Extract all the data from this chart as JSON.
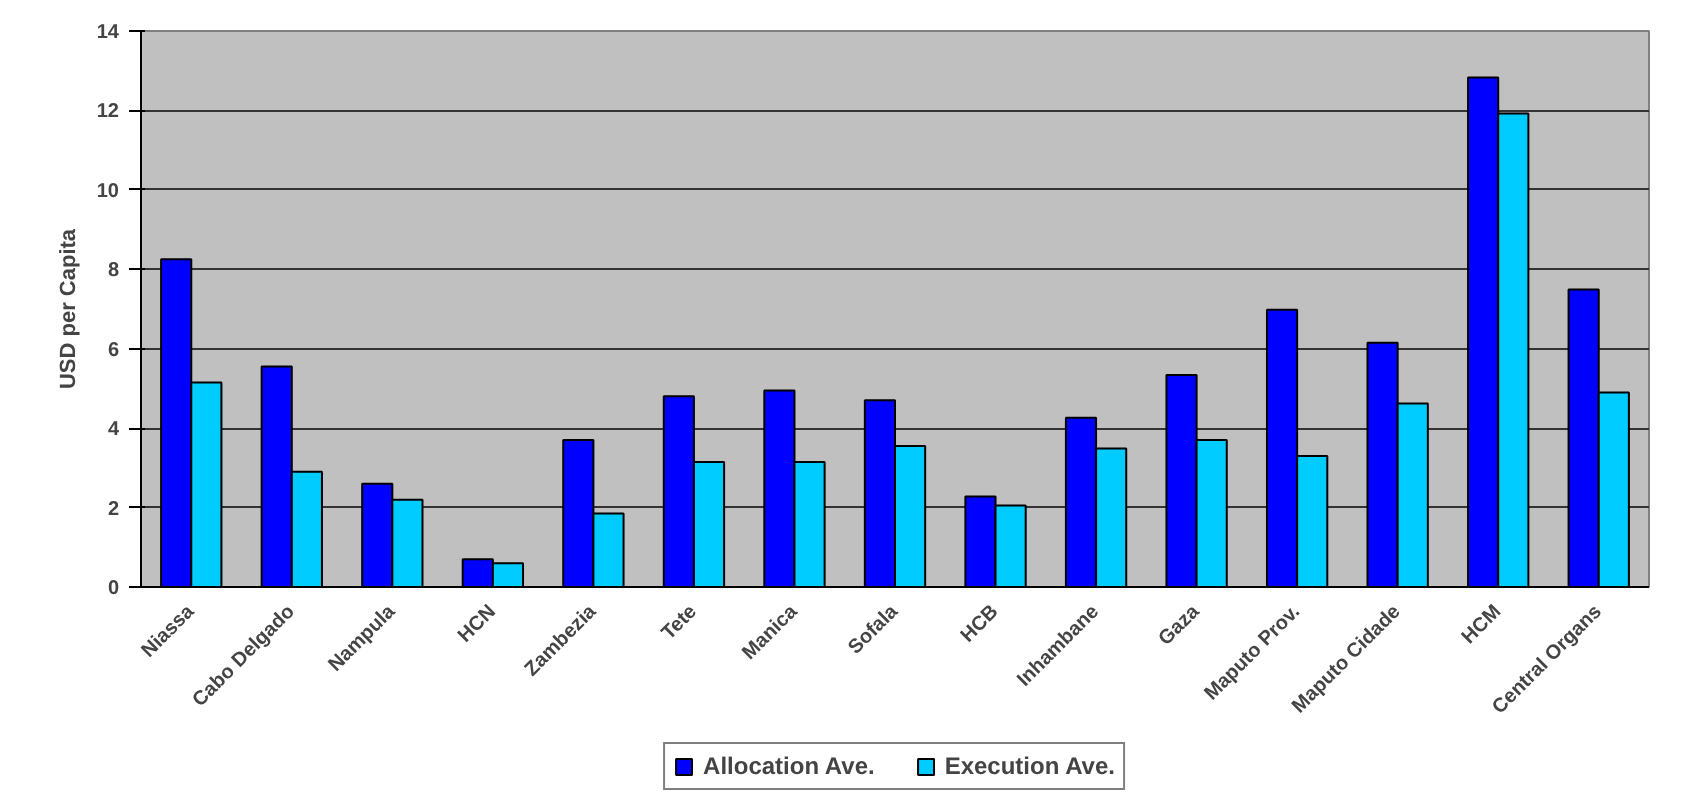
{
  "chart_data": {
    "type": "bar",
    "ylabel": "USD per Capita",
    "categories": [
      "Niassa",
      "Cabo Delgado",
      "Nampula",
      "HCN",
      "Zambezia",
      "Tete",
      "Manica",
      "Sofala",
      "HCB",
      "Inhambane",
      "Gaza",
      "Maputo Prov.",
      "Maputo Cidade",
      "HCM",
      "Central Organs"
    ],
    "series": [
      {
        "name": "Allocation Ave.",
        "color": "#0000ff",
        "values": [
          8.25,
          5.55,
          2.6,
          0.7,
          3.7,
          4.8,
          4.95,
          4.7,
          2.28,
          4.26,
          5.34,
          6.98,
          6.15,
          12.83,
          7.49
        ]
      },
      {
        "name": "Execution Ave.",
        "color": "#00ccff",
        "values": [
          5.15,
          2.9,
          2.2,
          0.6,
          1.85,
          3.15,
          3.15,
          3.55,
          2.05,
          3.49,
          3.7,
          3.3,
          4.62,
          11.92,
          4.9
        ]
      }
    ],
    "ylim": [
      0,
      14
    ],
    "yticks": [
      0,
      2,
      4,
      6,
      8,
      10,
      12,
      14
    ],
    "grid": "y",
    "legend": "bottom"
  }
}
